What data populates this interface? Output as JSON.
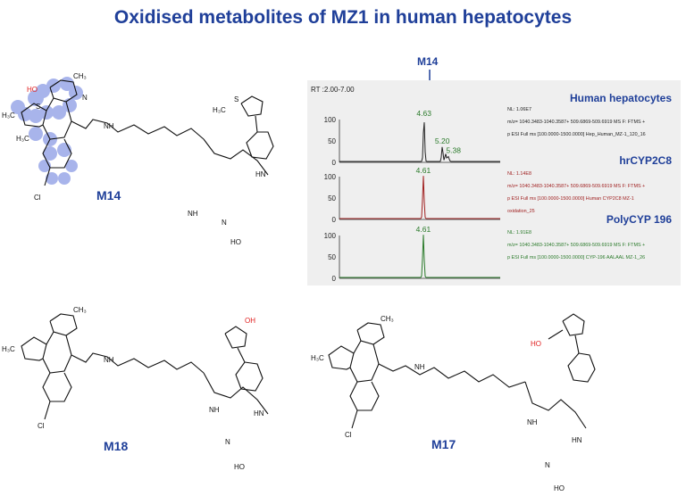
{
  "title": "Oxidised metabolites of MZ1 in human hepatocytes",
  "labels": {
    "m14": "M14",
    "m18": "M18",
    "m17": "M17",
    "arrow": "M14"
  },
  "chem": {
    "ho": "HO",
    "oh": "OH",
    "ch3": "CH₃",
    "h3c": "H₃C",
    "cl": "Cl",
    "n": "N",
    "s": "S",
    "o": "O",
    "nh": "NH",
    "hn": "HN",
    "hn2": "HN",
    "ho2": "HO"
  },
  "chromatogram": {
    "rt_label": "RT :2.00-7.00",
    "tracks": [
      {
        "name": "Human hepatocytes",
        "color": "#222222",
        "name_color": "#1f3f99",
        "nl": "NL: 1.06E7",
        "info1": "m/z= 1040.3483-1040.3587+ 509.6869-509.6919 MS  F: FTMS +",
        "info2": "p ESI Full ms [100.0000-1500.0000] Hep_Human_MZ-1_120_16",
        "peaks": [
          {
            "rt": 4.63,
            "label": "4.63"
          },
          {
            "rt": 5.2,
            "label": "5.20"
          },
          {
            "rt": 5.38,
            "label": "5.38"
          }
        ],
        "yticks": [
          "100",
          "50",
          "0"
        ]
      },
      {
        "name": "hrCYP2C8",
        "color": "#a02020",
        "name_color": "#1f3f99",
        "nl": "NL: 1.14E8",
        "info1": "m/z= 1040.3483-1040.3587+ 509.6869-509.6919 MS  F: FTMS +",
        "info2": "p ESI Full ms [100.0000-1500.0000] Human CYP2C8 MZ-1",
        "info3": "oxidation_25",
        "peaks": [
          {
            "rt": 4.61,
            "label": "4.61"
          }
        ],
        "yticks": [
          "100",
          "50",
          "0"
        ]
      },
      {
        "name": "PolyCYP 196",
        "color": "#2a7a2a",
        "name_color": "#1f3f99",
        "nl": "NL: 1.91E8",
        "info1": "m/z= 1040.3483-1040.3587+ 509.6869-509.6919 MS  F: FTMS +",
        "info2": "p ESI Full ms [100.0000-1500.0000] CYP-196 AALAAL MZ-1_26",
        "peaks": [
          {
            "rt": 4.61,
            "label": "4.61"
          }
        ],
        "yticks": [
          "100",
          "50",
          "0"
        ]
      }
    ]
  },
  "colors": {
    "title": "#1f3f99",
    "highlight": "#9aa8e8",
    "oxidation": "#e02020"
  }
}
